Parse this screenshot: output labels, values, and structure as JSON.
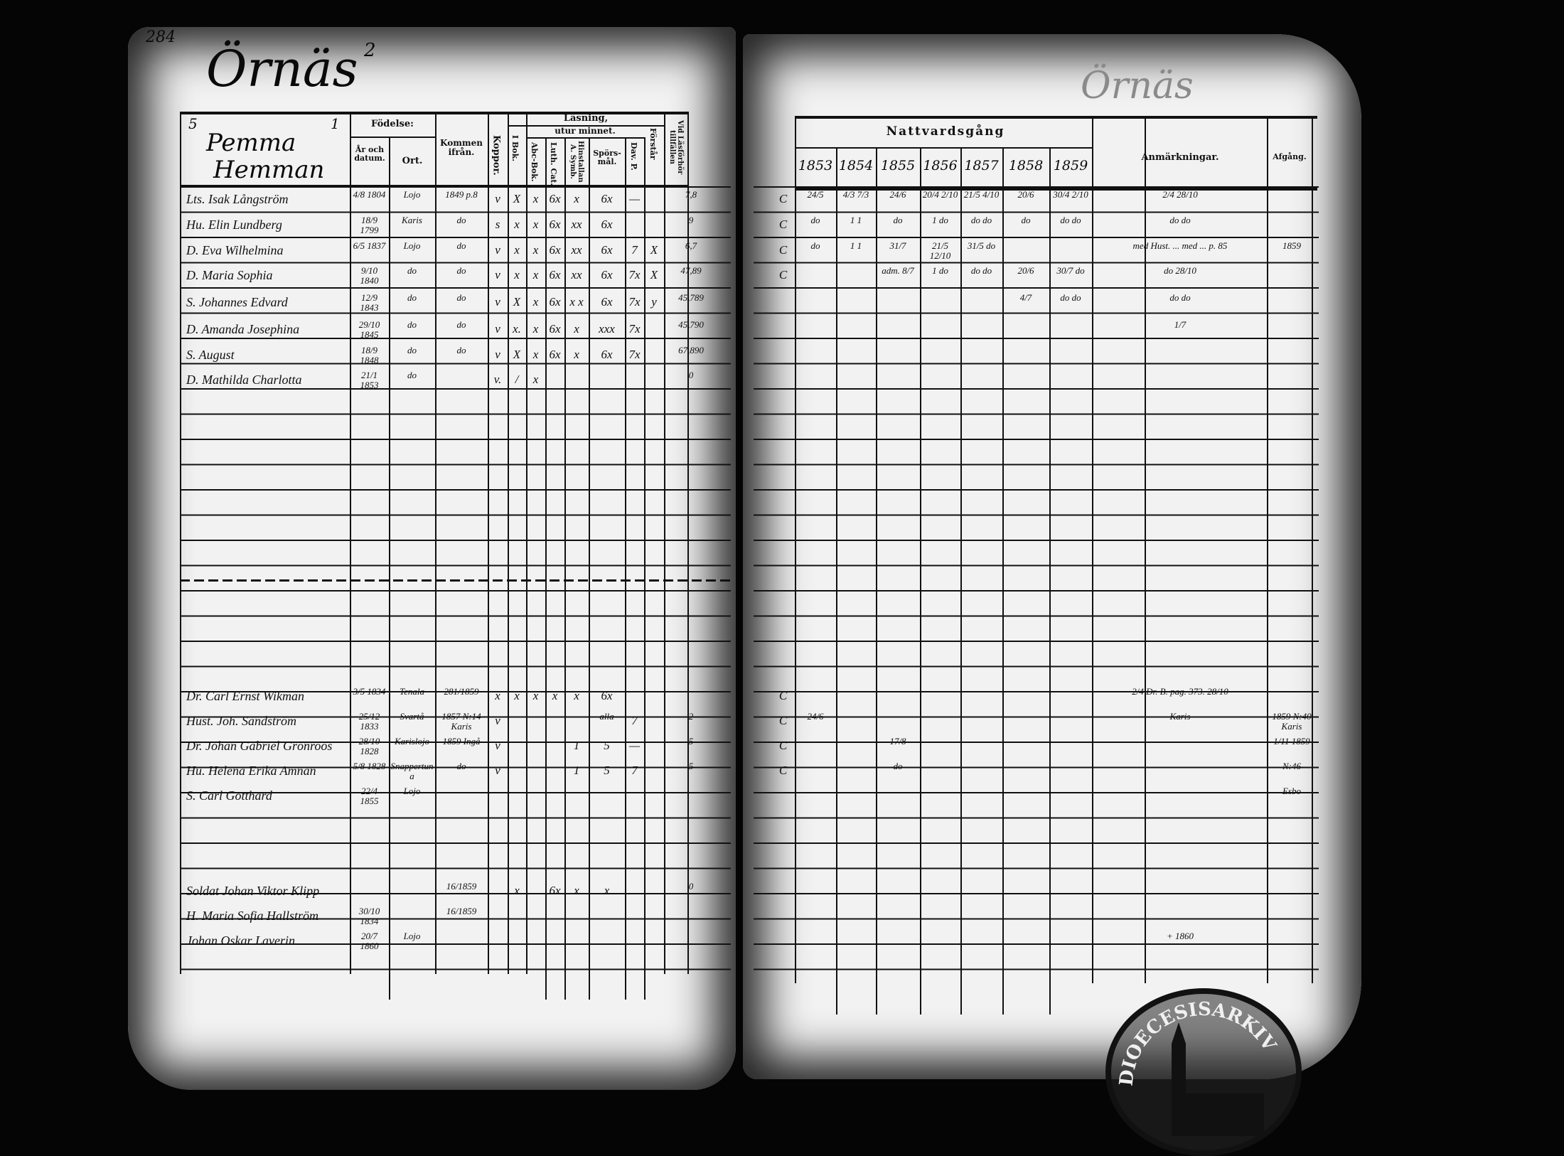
{
  "page_number": "284",
  "place_title": "Örnäs",
  "place_superscript": "2",
  "left_header": {
    "farm_number": "5",
    "farm_mark": "1",
    "farm_name_line1": "Pemma",
    "farm_name_line2": "Hemman",
    "birth": "Födelse:",
    "birth_date": "År och datum.",
    "birth_place": "Ort.",
    "from": "Kommen ifrån.",
    "smallpox": "Koppor.",
    "reading": "Läsning,",
    "by_heart": "utur minnet.",
    "i_bok": "I Bok.",
    "abc": "Abc-Bok.",
    "luth": "Luth. Cat.",
    "hist": "Hinstallan A. Symb.",
    "questions": "Spörs-mål.",
    "dav": "Dav. P.",
    "understands": "Förstår",
    "exam": "Vid Läsförhör tillfällen"
  },
  "right_header": {
    "communion": "Nattvardsgång",
    "years": [
      "1853",
      "1854",
      "1855",
      "1856",
      "1857",
      "1858",
      "1859"
    ],
    "remarks": "Anmärkningar.",
    "departure": "Afgång.",
    "faded_heading": "Örnäs"
  },
  "entries": [
    {
      "name": "Lts. Isak Långström",
      "born": "4/8 1804",
      "place": "Lojo",
      "from": "1849 p.8",
      "marks": [
        "v",
        "X",
        "x",
        "6x",
        "x",
        "6x",
        "—",
        ""
      ],
      "exam": "7,8",
      "c": "C",
      "communion": [
        "24/5",
        "4/3 7/3",
        "24/6",
        "20/4 2/10",
        "21/5 4/10",
        "20/6",
        "30/4 2/10"
      ],
      "remark": "2/4 28/10",
      "departure": ""
    },
    {
      "name": "Hu. Elin Lundberg",
      "born": "18/9 1799",
      "place": "Karis",
      "from": "do",
      "marks": [
        "s",
        "x",
        "x",
        "6x",
        "xx",
        "6x",
        "",
        ""
      ],
      "exam": "9",
      "c": "C",
      "communion": [
        "do",
        "1 1",
        "do",
        "1 do",
        "do do",
        "do",
        "do do"
      ],
      "remark": "do do",
      "departure": ""
    },
    {
      "name": "D. Eva Wilhelmina",
      "born": "6/5 1837",
      "place": "Lojo",
      "from": "do",
      "marks": [
        "v",
        "x",
        "x",
        "6x",
        "xx",
        "6x",
        "7",
        "X"
      ],
      "exam": "6,7",
      "c": "C",
      "communion": [
        "do",
        "1 1",
        "31/7",
        "21/5 12/10",
        "31/5 do",
        "",
        ""
      ],
      "remark": "med Hust. ... med ... p. 85",
      "departure": "1859"
    },
    {
      "name": "D. Maria Sophia",
      "born": "9/10 1840",
      "place": "do",
      "from": "do",
      "marks": [
        "v",
        "x",
        "x",
        "6x",
        "xx",
        "6x",
        "7x",
        "X"
      ],
      "exam": "47,89",
      "c": "C",
      "communion": [
        "",
        "",
        "adm. 8/7",
        "1 do",
        "do do",
        "20/6",
        "30/7 do"
      ],
      "remark": "do 28/10",
      "departure": ""
    },
    {
      "name": "S. Johannes Edvard",
      "born": "12/9 1843",
      "place": "do",
      "from": "do",
      "marks": [
        "v",
        "X",
        "x",
        "6x",
        "x x",
        "6x",
        "7x",
        "y"
      ],
      "exam": "45,789",
      "c": "",
      "communion": [
        "",
        "",
        "",
        "",
        "",
        "4/7",
        "do do"
      ],
      "remark": "do do",
      "departure": ""
    },
    {
      "name": "D. Amanda Josephina",
      "born": "29/10 1845",
      "place": "do",
      "from": "do",
      "marks": [
        "v",
        "x.",
        "x",
        "6x",
        "x",
        "xxx",
        "7x",
        ""
      ],
      "exam": "45,790",
      "c": "",
      "communion": [
        "",
        "",
        "",
        "",
        "",
        "",
        ""
      ],
      "remark": "1/7",
      "departure": ""
    },
    {
      "name": "S. August",
      "born": "18/9 1848",
      "place": "do",
      "from": "do",
      "marks": [
        "v",
        "X",
        "x",
        "6x",
        "x",
        "6x",
        "7x",
        ""
      ],
      "exam": "67,890",
      "c": "",
      "communion": [
        "",
        "",
        "",
        "",
        "",
        "",
        ""
      ],
      "remark": "",
      "departure": ""
    },
    {
      "name": "D. Mathilda Charlotta",
      "born": "21/1 1853",
      "place": "do",
      "from": "",
      "marks": [
        "v.",
        "/",
        "x",
        "",
        "",
        "",
        "",
        ""
      ],
      "exam": "0",
      "c": "",
      "communion": [
        "",
        "",
        "",
        "",
        "",
        "",
        ""
      ],
      "remark": "",
      "departure": ""
    },
    {
      "name": "Dr. Carl Ernst Wikman",
      "born": "3/5 1834",
      "place": "Tenala",
      "from": "281/1859",
      "marks": [
        "x",
        "x",
        "x",
        "x",
        "x",
        "6x",
        "",
        ""
      ],
      "exam": "",
      "c": "C",
      "communion": [
        "",
        "",
        "",
        "",
        "",
        "",
        ""
      ],
      "remark": "2/4 Dr. B. pag. 373. 28/10",
      "departure": ""
    },
    {
      "name": "Hust. Joh. Sandström",
      "born": "25/12 1833",
      "place": "Svartå",
      "from": "1857 N:14 Karis",
      "marks": [
        "v",
        "",
        "",
        "",
        "",
        "alla",
        "7",
        ""
      ],
      "exam": "2",
      "c": "C",
      "communion": [
        "24/6",
        "",
        "",
        "",
        "",
        "",
        ""
      ],
      "remark": "Karis",
      "departure": "1859 N:40 Karis"
    },
    {
      "name": "Dr. Johan Gabriel Grönroos",
      "born": "28/10 1828",
      "place": "Karislojo",
      "from": "1859 Ingå",
      "marks": [
        "v",
        "",
        "",
        "",
        "1",
        "5",
        "—",
        ""
      ],
      "exam": "5",
      "c": "C",
      "communion": [
        "",
        "",
        "17/8",
        "",
        "",
        "",
        ""
      ],
      "remark": "",
      "departure": "1/11 1859"
    },
    {
      "name": "Hu. Helena Erika Amnan",
      "born": "5/8 1828",
      "place": "Snappertuna",
      "from": "do",
      "marks": [
        "v",
        "",
        "",
        "",
        "1",
        "5",
        "7",
        ""
      ],
      "exam": "5",
      "c": "C",
      "communion": [
        "",
        "",
        "do",
        "",
        "",
        "",
        ""
      ],
      "remark": "",
      "departure": "N:46"
    },
    {
      "name": "S. Carl Gotthard",
      "born": "22/4 1855",
      "place": "Lojo",
      "from": "",
      "marks": [
        "",
        "",
        "",
        "",
        "",
        "",
        "",
        ""
      ],
      "exam": "",
      "c": "",
      "communion": [
        "",
        "",
        "",
        "",
        "",
        "",
        ""
      ],
      "remark": "",
      "departure": "Esbo"
    },
    {
      "name": "Soldat Johan Viktor Klipp",
      "born": "",
      "place": "",
      "from": "16/1859",
      "marks": [
        "",
        "x",
        "",
        "6x",
        "x",
        "x",
        "",
        ""
      ],
      "exam": "0",
      "c": "",
      "communion": [
        "",
        "",
        "",
        "",
        "",
        "",
        ""
      ],
      "remark": "",
      "departure": ""
    },
    {
      "name": "H. Maria Sofia Hallström",
      "born": "30/10 1834",
      "place": "",
      "from": "16/1859",
      "marks": [
        "",
        "",
        "",
        "",
        "",
        "",
        "",
        ""
      ],
      "exam": "",
      "c": "",
      "communion": [
        "",
        "",
        "",
        "",
        "",
        "",
        ""
      ],
      "remark": "",
      "departure": ""
    },
    {
      "name": "Johan Oskar Laverin",
      "born": "20/7 1860",
      "place": "Lojo",
      "from": "",
      "marks": [
        "",
        "",
        "",
        "",
        "",
        "",
        "",
        ""
      ],
      "exam": "",
      "c": "",
      "communion": [
        "",
        "",
        "",
        "",
        "",
        "",
        ""
      ],
      "remark": "+ 1860",
      "departure": ""
    }
  ],
  "stamp_text": "DIOECESISARKIV"
}
